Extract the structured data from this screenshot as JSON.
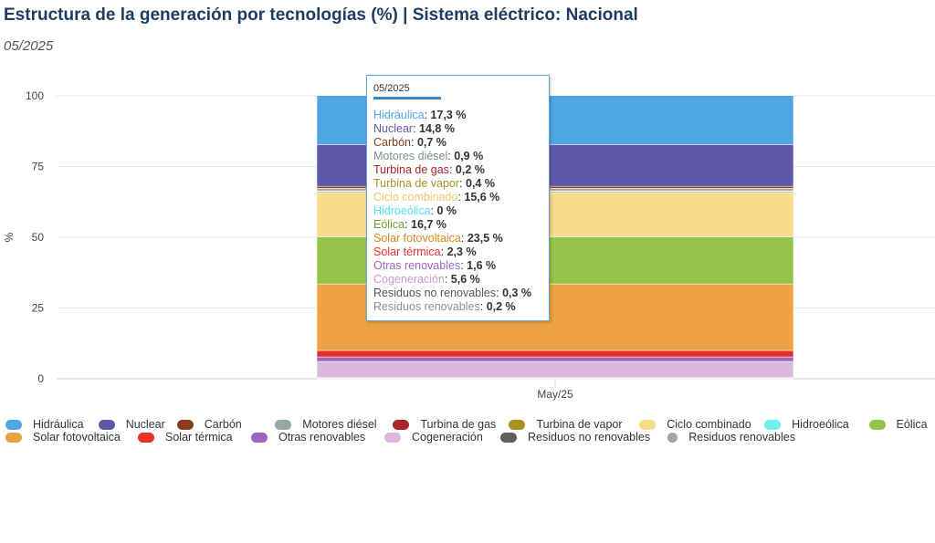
{
  "header": {
    "title": "Estructura de la generación por tecnologías (%) | Sistema eléctrico: Nacional",
    "subtitle": "05/2025"
  },
  "chart_data": {
    "type": "bar",
    "stacked": true,
    "title": "Estructura de la generación por tecnologías (%) | Sistema eléctrico: Nacional",
    "categories": [
      "May/25"
    ],
    "ylabel": "%",
    "xlabel": "",
    "ylim": [
      0,
      100
    ],
    "yticks": [
      0,
      25,
      50,
      75,
      100
    ],
    "grid": true,
    "series": [
      {
        "name": "Hidráulica",
        "values": [
          17.3
        ],
        "color": "#4ea6e3"
      },
      {
        "name": "Nuclear",
        "values": [
          14.8
        ],
        "color": "#5f58a8"
      },
      {
        "name": "Carbón",
        "values": [
          0.7
        ],
        "color": "#8c3b1f"
      },
      {
        "name": "Motores diésel",
        "values": [
          0.9
        ],
        "color": "#93a9a2"
      },
      {
        "name": "Turbina de gas",
        "values": [
          0.2
        ],
        "color": "#a8262a"
      },
      {
        "name": "Turbina de vapor",
        "values": [
          0.4
        ],
        "color": "#a89023"
      },
      {
        "name": "Ciclo combinado",
        "values": [
          15.6
        ],
        "color": "#f7dc8c"
      },
      {
        "name": "Hidroeólica",
        "values": [
          0
        ],
        "color": "#6ef0f2"
      },
      {
        "name": "Eólica",
        "values": [
          16.7
        ],
        "color": "#94c54a"
      },
      {
        "name": "Solar fotovoltaica",
        "values": [
          23.5
        ],
        "color": "#eda140"
      },
      {
        "name": "Solar térmica",
        "values": [
          2.3
        ],
        "color": "#e8302a"
      },
      {
        "name": "Otras renovables",
        "values": [
          1.6
        ],
        "color": "#9b68be"
      },
      {
        "name": "Cogeneración",
        "values": [
          5.6
        ],
        "color": "#dcb8dc"
      },
      {
        "name": "Residuos no renovables",
        "values": [
          0.3
        ],
        "color": "#5f5f5f"
      },
      {
        "name": "Residuos renovables",
        "values": [
          0.2
        ],
        "color": "#a4a4a4"
      }
    ],
    "tooltip": {
      "period": "05/2025",
      "rows": [
        {
          "name": "Hidráulica",
          "value": "17,3 %"
        },
        {
          "name": "Nuclear",
          "value": "14,8 %"
        },
        {
          "name": "Carbón",
          "value": "0,7 %"
        },
        {
          "name": "Motores diésel",
          "value": "0,9 %"
        },
        {
          "name": "Turbina de gas",
          "value": "0,2 %"
        },
        {
          "name": "Turbina de vapor",
          "value": "0,4 %"
        },
        {
          "name": "Ciclo combinado",
          "value": "15,6 %"
        },
        {
          "name": "Hidroeólica",
          "value": "0 %"
        },
        {
          "name": "Eólica",
          "value": "16,7 %"
        },
        {
          "name": "Solar fotovoltaica",
          "value": "23,5 %"
        },
        {
          "name": "Solar térmica",
          "value": "2,3 %"
        },
        {
          "name": "Otras renovables",
          "value": "1,6 %"
        },
        {
          "name": "Cogeneración",
          "value": "5,6 %"
        },
        {
          "name": "Residuos no renovables",
          "value": "0,3 %"
        },
        {
          "name": "Residuos renovables",
          "value": "0,2 %"
        }
      ]
    },
    "legend_position": "bottom"
  }
}
